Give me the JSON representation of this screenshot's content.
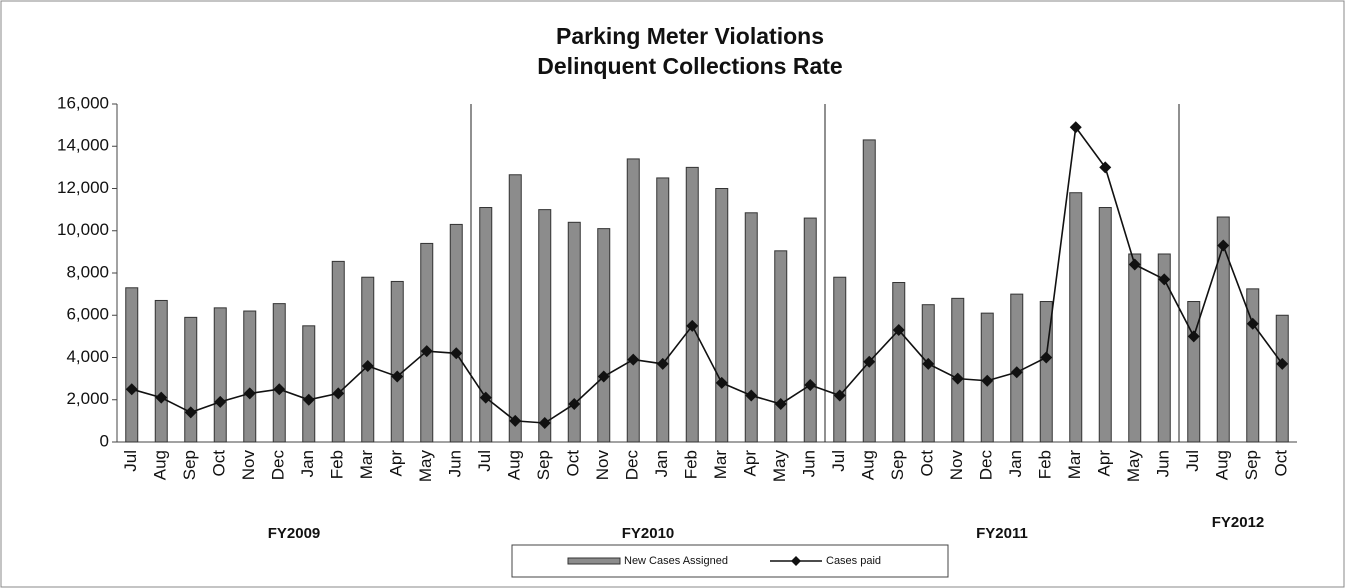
{
  "chart_data": {
    "type": "bar_line",
    "title": "Parking Meter Violations",
    "subtitle": "Delinquent Collections Rate",
    "category_groups": [
      {
        "label": "FY2009",
        "categories": [
          "Jul",
          "Aug",
          "Sep",
          "Oct",
          "Nov",
          "Dec",
          "Jan",
          "Feb",
          "Mar",
          "Apr",
          "May",
          "Jun"
        ]
      },
      {
        "label": "FY2010",
        "categories": [
          "Jul",
          "Aug",
          "Sep",
          "Oct",
          "Nov",
          "Dec",
          "Jan",
          "Feb",
          "Mar",
          "Apr",
          "May",
          "Jun"
        ]
      },
      {
        "label": "FY2011",
        "categories": [
          "Jul",
          "Aug",
          "Sep",
          "Oct",
          "Nov",
          "Dec",
          "Jan",
          "Feb",
          "Mar",
          "Apr",
          "May",
          "Jun"
        ]
      },
      {
        "label": "FY2012",
        "categories": [
          "Jul",
          "Aug",
          "Sep",
          "Oct"
        ]
      }
    ],
    "series": [
      {
        "name": "New Cases Assigned",
        "type": "bar",
        "color": "#8c8c8c",
        "values": [
          7300,
          6700,
          5900,
          6350,
          6200,
          6550,
          5500,
          8550,
          7800,
          7600,
          9400,
          10300,
          11100,
          12650,
          11000,
          10400,
          10100,
          13400,
          12500,
          13000,
          12000,
          10850,
          9050,
          10600,
          7800,
          14300,
          7550,
          6500,
          6800,
          6100,
          7000,
          6650,
          11800,
          11100,
          8900,
          8900,
          6650,
          10650,
          7250,
          6000
        ]
      },
      {
        "name": "Cases paid",
        "type": "line",
        "color": "#111111",
        "values": [
          2500,
          2100,
          1400,
          1900,
          2300,
          2500,
          2000,
          2300,
          3600,
          3100,
          4300,
          4200,
          2100,
          1000,
          900,
          1800,
          3100,
          3900,
          3700,
          5500,
          2800,
          2200,
          1800,
          2700,
          2200,
          3800,
          5300,
          3700,
          3000,
          2900,
          3300,
          4000,
          14900,
          13000,
          8400,
          7700,
          5000,
          9300,
          5600,
          3700
        ]
      }
    ],
    "ylim": [
      0,
      16000
    ],
    "yticks": [
      0,
      {
        "value": 2000,
        "label": "2,000"
      },
      {
        "value": 4000,
        "label": "4,000"
      },
      {
        "value": 6000,
        "label": "6,000"
      },
      {
        "value": 8000,
        "label": "8,000"
      },
      {
        "value": 10000,
        "label": "10,000"
      },
      {
        "value": 12000,
        "label": "12,000"
      },
      {
        "value": 14000,
        "label": "14,000"
      },
      {
        "value": 16000,
        "label": "16,000"
      }
    ],
    "grid": false
  }
}
